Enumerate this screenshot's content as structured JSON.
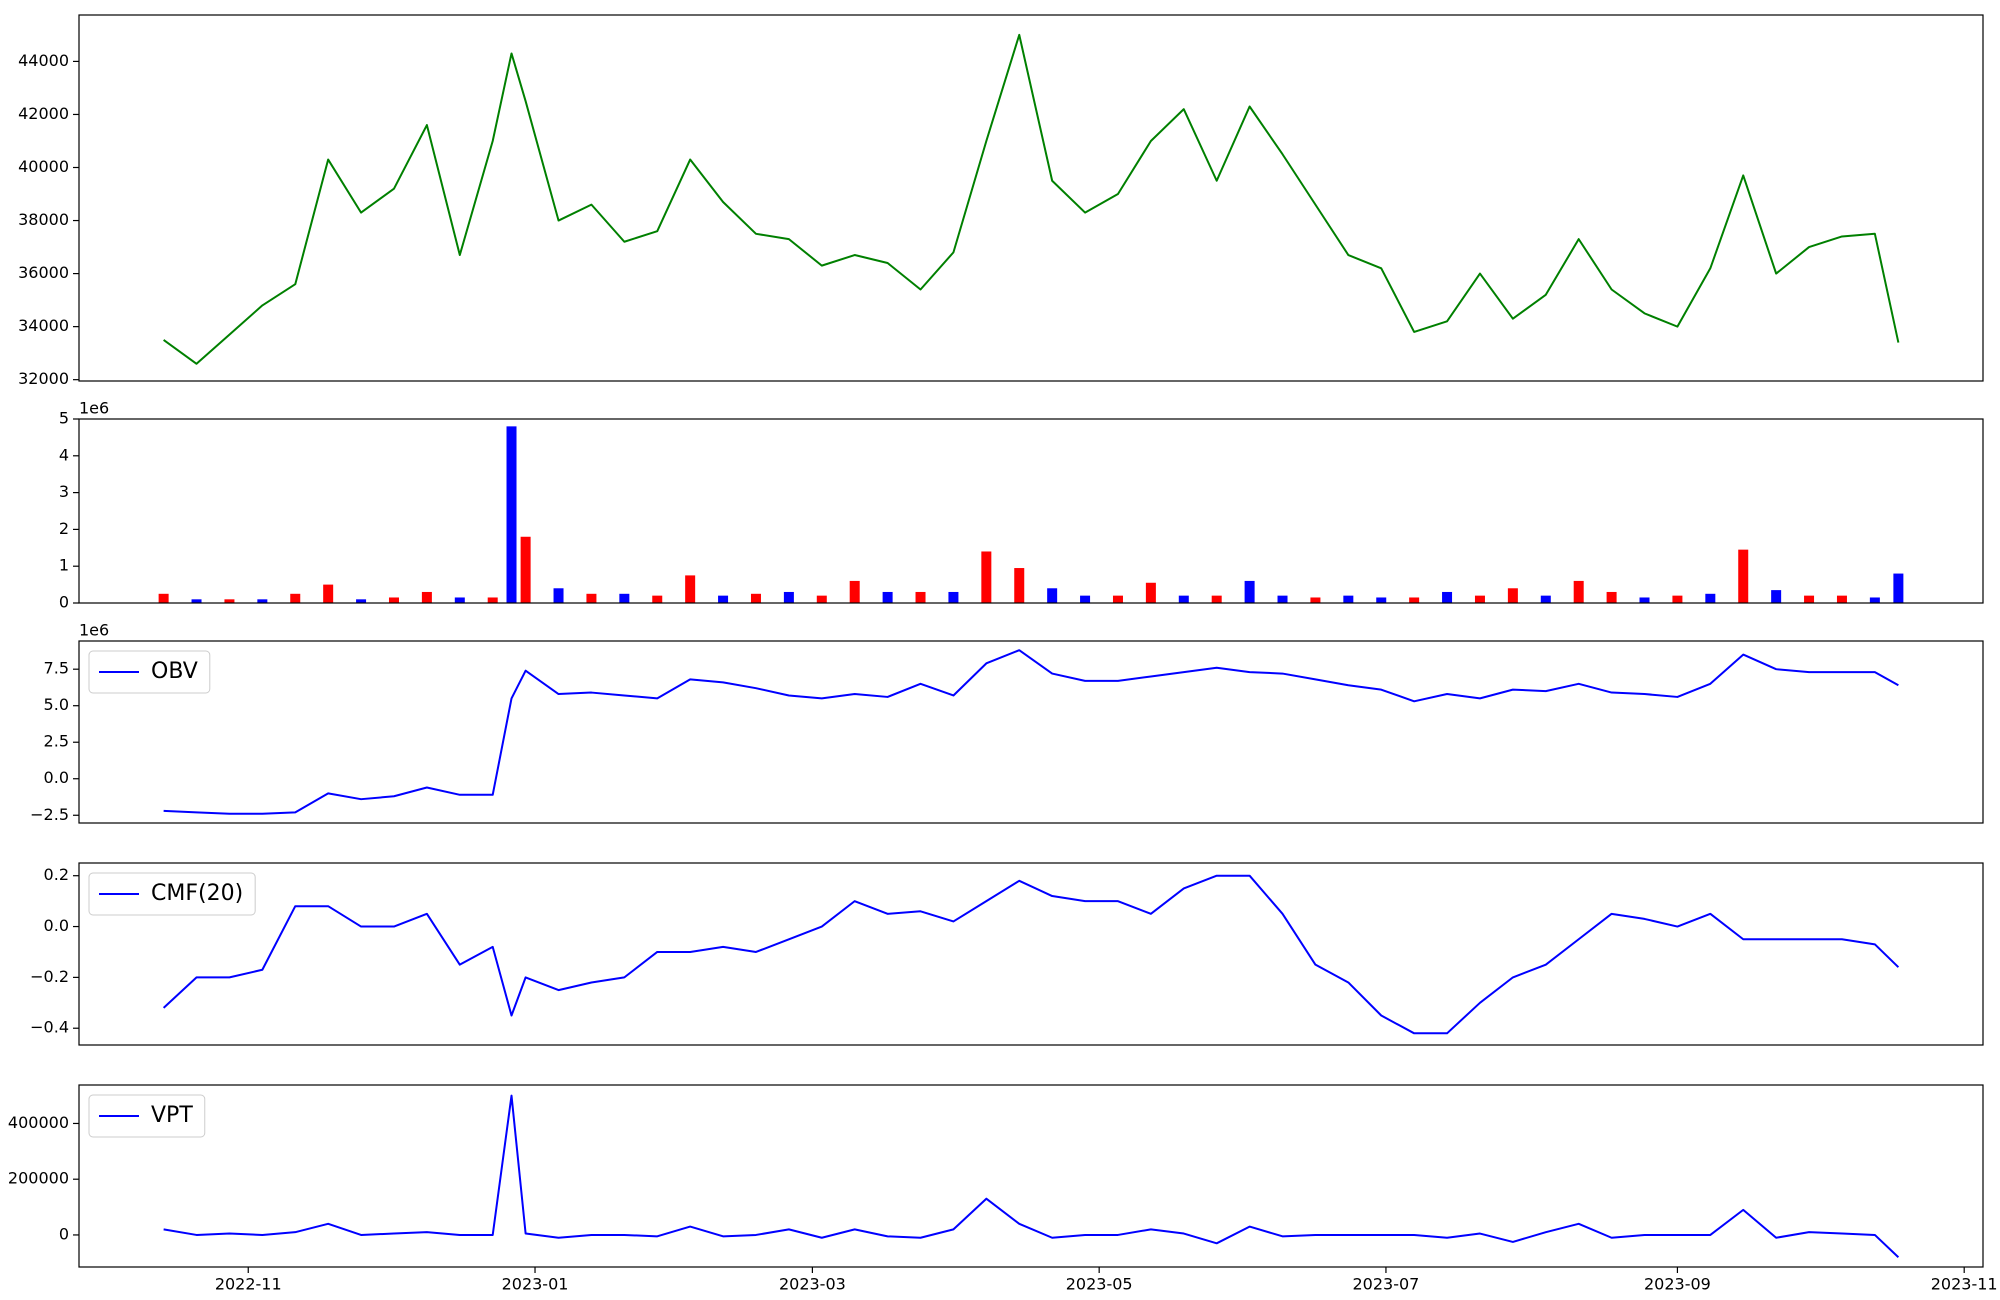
{
  "chart_data": [
    {
      "type": "line",
      "color": "green",
      "x": [
        "2022-10-14",
        "2022-10-21",
        "2022-10-28",
        "2022-11-04",
        "2022-11-11",
        "2022-11-18",
        "2022-11-25",
        "2022-12-02",
        "2022-12-09",
        "2022-12-16",
        "2022-12-23",
        "2022-12-27",
        "2022-12-30",
        "2023-01-06",
        "2023-01-13",
        "2023-01-20",
        "2023-01-27",
        "2023-02-03",
        "2023-02-10",
        "2023-02-17",
        "2023-02-24",
        "2023-03-03",
        "2023-03-10",
        "2023-03-17",
        "2023-03-24",
        "2023-03-31",
        "2023-04-07",
        "2023-04-14",
        "2023-04-21",
        "2023-04-28",
        "2023-05-05",
        "2023-05-12",
        "2023-05-19",
        "2023-05-26",
        "2023-06-02",
        "2023-06-09",
        "2023-06-16",
        "2023-06-23",
        "2023-06-30",
        "2023-07-07",
        "2023-07-14",
        "2023-07-21",
        "2023-07-28",
        "2023-08-04",
        "2023-08-11",
        "2023-08-18",
        "2023-08-25",
        "2023-09-01",
        "2023-09-08",
        "2023-09-15",
        "2023-09-22",
        "2023-09-29",
        "2023-10-06",
        "2023-10-13",
        "2023-10-18"
      ],
      "values": [
        33500,
        32600,
        33700,
        34800,
        35600,
        40300,
        38300,
        39200,
        41600,
        36700,
        41000,
        44300,
        42500,
        38000,
        38600,
        37200,
        37600,
        40300,
        38700,
        37500,
        37300,
        36300,
        36700,
        36400,
        35400,
        36800,
        41000,
        45000,
        39500,
        38300,
        39000,
        41000,
        42200,
        39500,
        42300,
        40500,
        38600,
        36700,
        36200,
        33800,
        34200,
        36000,
        34300,
        35200,
        37300,
        35400,
        34500,
        34000,
        36200,
        39700,
        36000,
        37000,
        37400,
        37500,
        33400
      ],
      "xlim": [
        "2022-09-26",
        "2023-11-05"
      ],
      "ylim": [
        31950,
        45750
      ],
      "yticks": [
        32000,
        34000,
        36000,
        38000,
        40000,
        42000,
        44000
      ]
    },
    {
      "type": "bar",
      "y_offset_label": "1e6",
      "x": [
        "2022-10-14",
        "2022-10-21",
        "2022-10-28",
        "2022-11-04",
        "2022-11-11",
        "2022-11-18",
        "2022-11-25",
        "2022-12-02",
        "2022-12-09",
        "2022-12-16",
        "2022-12-23",
        "2022-12-27",
        "2022-12-30",
        "2023-01-06",
        "2023-01-13",
        "2023-01-20",
        "2023-01-27",
        "2023-02-03",
        "2023-02-10",
        "2023-02-17",
        "2023-02-24",
        "2023-03-03",
        "2023-03-10",
        "2023-03-17",
        "2023-03-24",
        "2023-03-31",
        "2023-04-07",
        "2023-04-14",
        "2023-04-21",
        "2023-04-28",
        "2023-05-05",
        "2023-05-12",
        "2023-05-19",
        "2023-05-26",
        "2023-06-02",
        "2023-06-09",
        "2023-06-16",
        "2023-06-23",
        "2023-06-30",
        "2023-07-07",
        "2023-07-14",
        "2023-07-21",
        "2023-07-28",
        "2023-08-04",
        "2023-08-11",
        "2023-08-18",
        "2023-08-25",
        "2023-09-01",
        "2023-09-08",
        "2023-09-15",
        "2023-09-22",
        "2023-09-29",
        "2023-10-06",
        "2023-10-13",
        "2023-10-18"
      ],
      "values": [
        0.25,
        0.1,
        0.1,
        0.1,
        0.25,
        0.5,
        0.1,
        0.15,
        0.3,
        0.15,
        0.15,
        4.8,
        1.8,
        0.4,
        0.25,
        0.25,
        0.2,
        0.75,
        0.2,
        0.25,
        0.3,
        0.2,
        0.6,
        0.3,
        0.3,
        0.3,
        1.4,
        0.95,
        0.4,
        0.2,
        0.2,
        0.55,
        0.2,
        0.2,
        0.6,
        0.2,
        0.15,
        0.2,
        0.15,
        0.15,
        0.3,
        0.2,
        0.4,
        0.2,
        0.6,
        0.3,
        0.15,
        0.2,
        0.25,
        1.45,
        0.35,
        0.2,
        0.2,
        0.15,
        0.8
      ],
      "colors": [
        "red",
        "blue",
        "red",
        "blue",
        "red",
        "red",
        "blue",
        "red",
        "red",
        "blue",
        "red",
        "blue",
        "red",
        "blue",
        "red",
        "blue",
        "red",
        "red",
        "blue",
        "red",
        "blue",
        "red",
        "red",
        "blue",
        "red",
        "blue",
        "red",
        "red",
        "blue",
        "blue",
        "red",
        "red",
        "blue",
        "red",
        "blue",
        "blue",
        "red",
        "blue",
        "blue",
        "red",
        "blue",
        "red",
        "red",
        "blue",
        "red",
        "red",
        "blue",
        "red",
        "blue",
        "red",
        "blue",
        "red",
        "red",
        "blue",
        "blue"
      ],
      "xlim": [
        "2022-09-26",
        "2023-11-05"
      ],
      "ylim": [
        0,
        5
      ],
      "yticks": [
        0,
        1,
        2,
        3,
        4,
        5
      ]
    },
    {
      "type": "line",
      "y_offset_label": "1e6",
      "legend": "upper left",
      "x": [
        "2022-10-14",
        "2022-10-21",
        "2022-10-28",
        "2022-11-04",
        "2022-11-11",
        "2022-11-18",
        "2022-11-25",
        "2022-12-02",
        "2022-12-09",
        "2022-12-16",
        "2022-12-23",
        "2022-12-27",
        "2022-12-30",
        "2023-01-06",
        "2023-01-13",
        "2023-01-20",
        "2023-01-27",
        "2023-02-03",
        "2023-02-10",
        "2023-02-17",
        "2023-02-24",
        "2023-03-03",
        "2023-03-10",
        "2023-03-17",
        "2023-03-24",
        "2023-03-31",
        "2023-04-07",
        "2023-04-14",
        "2023-04-21",
        "2023-04-28",
        "2023-05-05",
        "2023-05-12",
        "2023-05-19",
        "2023-05-26",
        "2023-06-02",
        "2023-06-09",
        "2023-06-16",
        "2023-06-23",
        "2023-06-30",
        "2023-07-07",
        "2023-07-14",
        "2023-07-21",
        "2023-07-28",
        "2023-08-04",
        "2023-08-11",
        "2023-08-18",
        "2023-08-25",
        "2023-09-01",
        "2023-09-08",
        "2023-09-15",
        "2023-09-22",
        "2023-09-29",
        "2023-10-06",
        "2023-10-13",
        "2023-10-18"
      ],
      "series": [
        {
          "name": "OBV",
          "color": "blue",
          "values": [
            -2.2,
            -2.3,
            -2.4,
            -2.4,
            -2.3,
            -1.0,
            -1.4,
            -1.2,
            -0.6,
            -1.1,
            -1.1,
            5.5,
            7.4,
            5.8,
            5.9,
            5.7,
            5.5,
            6.8,
            6.6,
            6.2,
            5.7,
            5.5,
            5.8,
            5.6,
            6.5,
            5.7,
            7.9,
            8.8,
            7.2,
            6.7,
            6.7,
            7.0,
            7.3,
            7.6,
            7.3,
            7.2,
            6.8,
            6.4,
            6.1,
            5.3,
            5.8,
            5.5,
            6.1,
            6.0,
            6.5,
            5.9,
            5.8,
            5.6,
            6.5,
            8.5,
            7.5,
            7.3,
            7.3,
            7.3,
            6.4
          ]
        }
      ],
      "xlim": [
        "2022-09-26",
        "2023-11-05"
      ],
      "ylim": [
        -3.03,
        9.43
      ],
      "yticks": [
        {
          "value": -2.5,
          "label": "−2.5"
        },
        {
          "value": 0,
          "label": "0.0"
        },
        {
          "value": 2.5,
          "label": "2.5"
        },
        {
          "value": 5,
          "label": "5.0"
        },
        {
          "value": 7.5,
          "label": "7.5"
        }
      ]
    },
    {
      "type": "line",
      "legend": "upper left",
      "x": [
        "2022-10-14",
        "2022-10-21",
        "2022-10-28",
        "2022-11-04",
        "2022-11-11",
        "2022-11-18",
        "2022-11-25",
        "2022-12-02",
        "2022-12-09",
        "2022-12-16",
        "2022-12-23",
        "2022-12-27",
        "2022-12-30",
        "2023-01-06",
        "2023-01-13",
        "2023-01-20",
        "2023-01-27",
        "2023-02-03",
        "2023-02-10",
        "2023-02-17",
        "2023-02-24",
        "2023-03-03",
        "2023-03-10",
        "2023-03-17",
        "2023-03-24",
        "2023-03-31",
        "2023-04-07",
        "2023-04-14",
        "2023-04-21",
        "2023-04-28",
        "2023-05-05",
        "2023-05-12",
        "2023-05-19",
        "2023-05-26",
        "2023-06-02",
        "2023-06-09",
        "2023-06-16",
        "2023-06-23",
        "2023-06-30",
        "2023-07-07",
        "2023-07-14",
        "2023-07-21",
        "2023-07-28",
        "2023-08-04",
        "2023-08-11",
        "2023-08-18",
        "2023-08-25",
        "2023-09-01",
        "2023-09-08",
        "2023-09-15",
        "2023-09-22",
        "2023-09-29",
        "2023-10-06",
        "2023-10-13",
        "2023-10-18"
      ],
      "series": [
        {
          "name": "CMF(20)",
          "color": "blue",
          "values": [
            -0.32,
            -0.2,
            -0.2,
            -0.17,
            0.08,
            0.08,
            0.0,
            0.0,
            0.05,
            -0.15,
            -0.08,
            -0.35,
            -0.2,
            -0.25,
            -0.22,
            -0.2,
            -0.1,
            -0.1,
            -0.08,
            -0.1,
            -0.05,
            0.0,
            0.1,
            0.05,
            0.06,
            0.02,
            0.1,
            0.18,
            0.12,
            0.1,
            0.1,
            0.05,
            0.15,
            0.2,
            0.2,
            0.05,
            -0.15,
            -0.22,
            -0.35,
            -0.42,
            -0.42,
            -0.3,
            -0.2,
            -0.15,
            -0.05,
            0.05,
            0.03,
            0.0,
            0.05,
            -0.05,
            -0.05,
            -0.05,
            -0.05,
            -0.07,
            -0.16
          ]
        }
      ],
      "xlim": [
        "2022-09-26",
        "2023-11-05"
      ],
      "ylim": [
        -0.466,
        0.25
      ],
      "yticks": [
        {
          "value": -0.4,
          "label": "−0.4"
        },
        {
          "value": -0.2,
          "label": "−0.2"
        },
        {
          "value": 0,
          "label": "0.0"
        },
        {
          "value": 0.2,
          "label": "0.2"
        }
      ]
    },
    {
      "type": "line",
      "legend": "upper left",
      "x": [
        "2022-10-14",
        "2022-10-21",
        "2022-10-28",
        "2022-11-04",
        "2022-11-11",
        "2022-11-18",
        "2022-11-25",
        "2022-12-02",
        "2022-12-09",
        "2022-12-16",
        "2022-12-23",
        "2022-12-27",
        "2022-12-30",
        "2023-01-06",
        "2023-01-13",
        "2023-01-20",
        "2023-01-27",
        "2023-02-03",
        "2023-02-10",
        "2023-02-17",
        "2023-02-24",
        "2023-03-03",
        "2023-03-10",
        "2023-03-17",
        "2023-03-24",
        "2023-03-31",
        "2023-04-07",
        "2023-04-14",
        "2023-04-21",
        "2023-04-28",
        "2023-05-05",
        "2023-05-12",
        "2023-05-19",
        "2023-05-26",
        "2023-06-02",
        "2023-06-09",
        "2023-06-16",
        "2023-06-23",
        "2023-06-30",
        "2023-07-07",
        "2023-07-14",
        "2023-07-21",
        "2023-07-28",
        "2023-08-04",
        "2023-08-11",
        "2023-08-18",
        "2023-08-25",
        "2023-09-01",
        "2023-09-08",
        "2023-09-15",
        "2023-09-22",
        "2023-09-29",
        "2023-10-06",
        "2023-10-13",
        "2023-10-18"
      ],
      "series": [
        {
          "name": "VPT",
          "color": "blue",
          "values": [
            20000,
            0,
            5000,
            0,
            10000,
            40000,
            0,
            5000,
            10000,
            0,
            0,
            500000,
            5000,
            -10000,
            0,
            0,
            -5000,
            30000,
            -5000,
            0,
            20000,
            -10000,
            20000,
            -5000,
            -10000,
            20000,
            130000,
            40000,
            -10000,
            0,
            0,
            20000,
            5000,
            -30000,
            30000,
            -5000,
            0,
            0,
            0,
            0,
            -10000,
            5000,
            -25000,
            10000,
            40000,
            -10000,
            0,
            0,
            0,
            90000,
            -10000,
            10000,
            5000,
            0,
            -80000
          ]
        }
      ],
      "xlim": [
        "2022-09-26",
        "2023-11-05"
      ],
      "ylim": [
        -115000,
        538000
      ],
      "yticks": [
        0,
        200000,
        400000
      ],
      "xticks": [
        "2022-11",
        "2023-01",
        "2023-03",
        "2023-05",
        "2023-07",
        "2023-09",
        "2023-11"
      ]
    }
  ]
}
